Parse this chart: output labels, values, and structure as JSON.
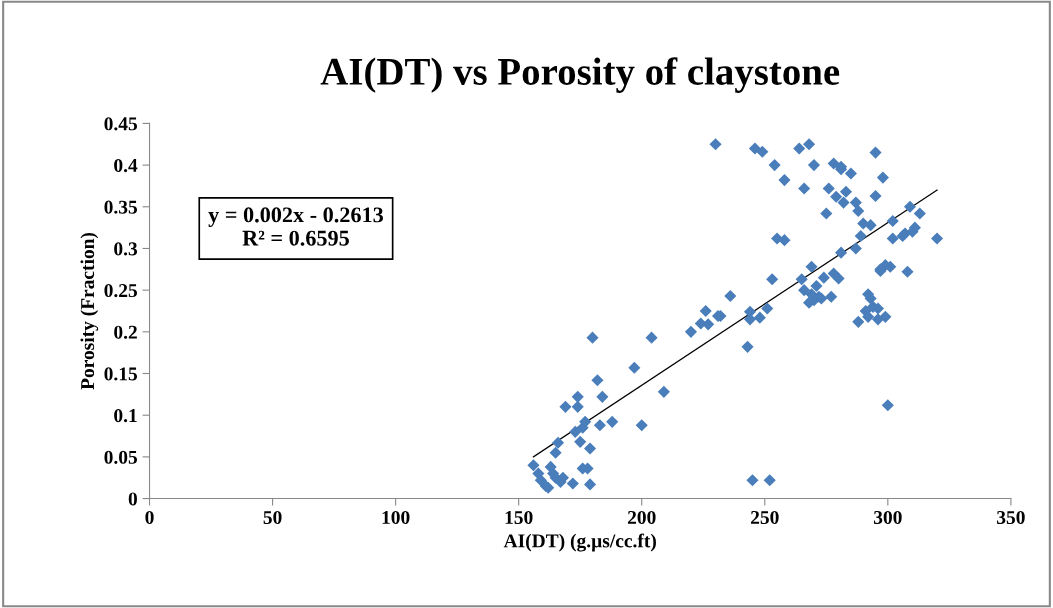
{
  "chart_data": {
    "type": "scatter",
    "title": "AI(DT) vs Porosity of claystone",
    "xlabel": "AI(DT) (g.µs/cc.ft)",
    "ylabel": "Porosity (Fraction)",
    "annotations": [
      "y = 0.002x - 0.2613\nR² = 0.6595"
    ],
    "xlim": [
      0,
      350
    ],
    "xticks": [
      0,
      50,
      100,
      150,
      200,
      250,
      300,
      350
    ],
    "ylim": [
      0,
      0.45
    ],
    "yticks": [
      {
        "value": 0,
        "label": "0"
      },
      0.05,
      0.1,
      0.15,
      0.2,
      0.25,
      0.3,
      0.35,
      0.4,
      0.45
    ],
    "grid": false,
    "legend": false,
    "marker": "diamond",
    "series": [
      {
        "color": "#4a7ebb",
        "x": [
          156,
          158,
          159,
          161,
          162,
          163,
          164,
          165,
          165,
          166,
          167,
          168,
          169,
          172,
          173,
          174,
          174,
          175,
          176,
          176,
          177,
          178,
          179,
          179,
          180,
          182,
          183,
          184,
          188,
          197,
          200,
          204,
          209,
          220,
          224,
          226,
          227,
          231,
          232,
          236,
          243,
          244,
          244,
          245,
          246,
          248,
          249,
          251,
          252,
          253,
          254,
          255,
          258,
          258,
          230,
          264,
          265,
          266,
          266,
          268,
          268,
          269,
          269,
          270,
          270,
          271,
          272,
          273,
          274,
          275,
          276,
          277,
          278,
          278,
          279,
          280,
          281,
          281,
          281,
          282,
          283,
          285,
          287,
          287,
          288,
          288,
          289,
          290,
          291,
          292,
          292,
          293,
          293,
          294,
          295,
          295,
          296,
          296,
          297,
          297,
          298,
          299,
          299,
          300,
          301,
          302,
          302,
          306,
          307,
          308,
          309,
          310,
          311,
          313,
          320
        ],
        "values": [
          0.04,
          0.03,
          0.022,
          0.015,
          0.013,
          0.038,
          0.03,
          0.025,
          0.055,
          0.067,
          0.02,
          0.025,
          0.11,
          0.018,
          0.08,
          0.11,
          0.122,
          0.068,
          0.085,
          0.036,
          0.092,
          0.036,
          0.017,
          0.06,
          0.193,
          0.142,
          0.088,
          0.122,
          0.092,
          0.157,
          0.088,
          0.193,
          0.128,
          0.2,
          0.21,
          0.225,
          0.209,
          0.219,
          0.219,
          0.243,
          0.182,
          0.224,
          0.215,
          0.022,
          0.42,
          0.217,
          0.416,
          0.228,
          0.022,
          0.263,
          0.4,
          0.312,
          0.31,
          0.382,
          0.425,
          0.42,
          0.263,
          0.25,
          0.372,
          0.425,
          0.235,
          0.245,
          0.278,
          0.4,
          0.238,
          0.255,
          0.242,
          0.24,
          0.265,
          0.342,
          0.372,
          0.242,
          0.27,
          0.402,
          0.362,
          0.264,
          0.398,
          0.395,
          0.295,
          0.355,
          0.368,
          0.39,
          0.3,
          0.355,
          0.345,
          0.212,
          0.315,
          0.33,
          0.225,
          0.245,
          0.218,
          0.328,
          0.24,
          0.23,
          0.363,
          0.415,
          0.215,
          0.228,
          0.273,
          0.275,
          0.385,
          0.28,
          0.218,
          0.112,
          0.278,
          0.333,
          0.312,
          0.315,
          0.318,
          0.272,
          0.35,
          0.32,
          0.325,
          0.342,
          0.312
        ]
      },
      {
        "type": "line",
        "color": "#000000",
        "line_style": "solid",
        "marker": "none",
        "x": [
          156,
          320
        ],
        "values": [
          0.05,
          0.37
        ]
      }
    ]
  }
}
